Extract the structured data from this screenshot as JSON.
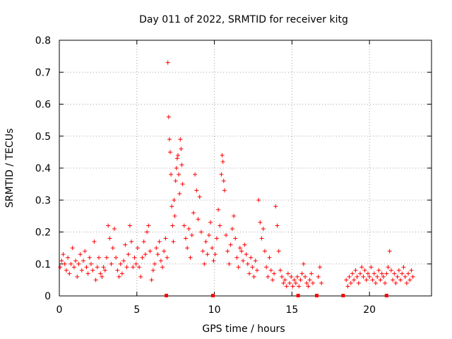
{
  "chart_data": {
    "type": "scatter",
    "title": "Day 011 of 2022, SRMTID for receiver kitg",
    "xlabel": "GPS time / hours",
    "ylabel": "SRMTID / TECUs",
    "xlim": [
      0,
      24
    ],
    "ylim": [
      0,
      0.8
    ],
    "grid": true,
    "xticks": [
      0,
      5,
      10,
      15,
      20
    ],
    "yticks": [
      0,
      0.1,
      0.2,
      0.3,
      0.4,
      0.5,
      0.6,
      0.7,
      0.8
    ],
    "xtick_labels": [
      "0",
      "5",
      "10",
      "15",
      "20"
    ],
    "ytick_labels": [
      "0",
      "0.1",
      "0.2",
      "0.3",
      "0.4",
      "0.5",
      "0.6",
      "0.7",
      "0.8"
    ],
    "marker": "+",
    "color": "#ff0000",
    "series": [
      {
        "name": "SRMTID",
        "points": [
          [
            0.05,
            0.09
          ],
          [
            0.15,
            0.11
          ],
          [
            0.25,
            0.13
          ],
          [
            0.35,
            0.1
          ],
          [
            0.45,
            0.08
          ],
          [
            0.55,
            0.12
          ],
          [
            0.65,
            0.07
          ],
          [
            0.75,
            0.1
          ],
          [
            0.85,
            0.15
          ],
          [
            0.95,
            0.09
          ],
          [
            1.05,
            0.11
          ],
          [
            1.15,
            0.06
          ],
          [
            1.25,
            0.1
          ],
          [
            1.35,
            0.13
          ],
          [
            1.45,
            0.08
          ],
          [
            1.55,
            0.11
          ],
          [
            1.65,
            0.14
          ],
          [
            1.75,
            0.09
          ],
          [
            1.85,
            0.07
          ],
          [
            1.95,
            0.12
          ],
          [
            2.05,
            0.1
          ],
          [
            2.15,
            0.08
          ],
          [
            2.25,
            0.17
          ],
          [
            2.35,
            0.05
          ],
          [
            2.45,
            0.09
          ],
          [
            2.55,
            0.12
          ],
          [
            2.65,
            0.07
          ],
          [
            2.75,
            0.06
          ],
          [
            2.85,
            0.09
          ],
          [
            2.95,
            0.08
          ],
          [
            3.05,
            0.12
          ],
          [
            3.15,
            0.22
          ],
          [
            3.25,
            0.18
          ],
          [
            3.35,
            0.1
          ],
          [
            3.45,
            0.15
          ],
          [
            3.55,
            0.21
          ],
          [
            3.65,
            0.12
          ],
          [
            3.75,
            0.08
          ],
          [
            3.85,
            0.06
          ],
          [
            3.95,
            0.1
          ],
          [
            4.05,
            0.07
          ],
          [
            4.15,
            0.11
          ],
          [
            4.25,
            0.16
          ],
          [
            4.35,
            0.09
          ],
          [
            4.45,
            0.13
          ],
          [
            4.55,
            0.22
          ],
          [
            4.65,
            0.17
          ],
          [
            4.75,
            0.09
          ],
          [
            4.85,
            0.12
          ],
          [
            4.95,
            0.1
          ],
          [
            5.05,
            0.15
          ],
          [
            5.15,
            0.09
          ],
          [
            5.25,
            0.06
          ],
          [
            5.35,
            0.12
          ],
          [
            5.45,
            0.17
          ],
          [
            5.55,
            0.13
          ],
          [
            5.65,
            0.2
          ],
          [
            5.75,
            0.22
          ],
          [
            5.85,
            0.14
          ],
          [
            5.95,
            0.05
          ],
          [
            6.05,
            0.08
          ],
          [
            6.15,
            0.1
          ],
          [
            6.25,
            0.15
          ],
          [
            6.35,
            0.13
          ],
          [
            6.45,
            0.17
          ],
          [
            6.55,
            0.11
          ],
          [
            6.65,
            0.09
          ],
          [
            6.75,
            0.14
          ],
          [
            6.85,
            0.18
          ],
          [
            6.95,
            0.12
          ],
          [
            7.0,
            0.73
          ],
          [
            7.05,
            0.56
          ],
          [
            7.1,
            0.49
          ],
          [
            7.15,
            0.45
          ],
          [
            7.2,
            0.38
          ],
          [
            7.25,
            0.28
          ],
          [
            7.3,
            0.22
          ],
          [
            7.35,
            0.17
          ],
          [
            7.4,
            0.3
          ],
          [
            7.45,
            0.25
          ],
          [
            7.5,
            0.36
          ],
          [
            7.55,
            0.4
          ],
          [
            7.6,
            0.43
          ],
          [
            7.65,
            0.44
          ],
          [
            7.7,
            0.38
          ],
          [
            7.75,
            0.32
          ],
          [
            7.8,
            0.49
          ],
          [
            7.85,
            0.46
          ],
          [
            7.9,
            0.41
          ],
          [
            7.95,
            0.35
          ],
          [
            8.05,
            0.22
          ],
          [
            8.15,
            0.18
          ],
          [
            8.25,
            0.15
          ],
          [
            8.35,
            0.21
          ],
          [
            8.45,
            0.12
          ],
          [
            8.55,
            0.19
          ],
          [
            8.65,
            0.26
          ],
          [
            8.75,
            0.38
          ],
          [
            8.85,
            0.33
          ],
          [
            8.95,
            0.24
          ],
          [
            9.05,
            0.31
          ],
          [
            9.15,
            0.2
          ],
          [
            9.25,
            0.14
          ],
          [
            9.35,
            0.1
          ],
          [
            9.45,
            0.17
          ],
          [
            9.55,
            0.13
          ],
          [
            9.65,
            0.19
          ],
          [
            9.75,
            0.23
          ],
          [
            9.85,
            0.15
          ],
          [
            9.95,
            0.11
          ],
          [
            10.05,
            0.13
          ],
          [
            10.15,
            0.18
          ],
          [
            10.25,
            0.27
          ],
          [
            10.35,
            0.22
          ],
          [
            10.45,
            0.38
          ],
          [
            10.5,
            0.44
          ],
          [
            10.55,
            0.42
          ],
          [
            10.6,
            0.36
          ],
          [
            10.65,
            0.33
          ],
          [
            10.75,
            0.19
          ],
          [
            10.85,
            0.14
          ],
          [
            10.95,
            0.1
          ],
          [
            11.05,
            0.16
          ],
          [
            11.15,
            0.21
          ],
          [
            11.25,
            0.25
          ],
          [
            11.35,
            0.18
          ],
          [
            11.45,
            0.12
          ],
          [
            11.55,
            0.09
          ],
          [
            11.65,
            0.15
          ],
          [
            11.75,
            0.14
          ],
          [
            11.85,
            0.11
          ],
          [
            11.95,
            0.16
          ],
          [
            12.05,
            0.13
          ],
          [
            12.15,
            0.1
          ],
          [
            12.25,
            0.07
          ],
          [
            12.35,
            0.12
          ],
          [
            12.45,
            0.09
          ],
          [
            12.55,
            0.06
          ],
          [
            12.65,
            0.11
          ],
          [
            12.75,
            0.08
          ],
          [
            12.85,
            0.3
          ],
          [
            12.95,
            0.23
          ],
          [
            13.05,
            0.18
          ],
          [
            13.15,
            0.21
          ],
          [
            13.25,
            0.14
          ],
          [
            13.35,
            0.09
          ],
          [
            13.45,
            0.06
          ],
          [
            13.55,
            0.12
          ],
          [
            13.65,
            0.08
          ],
          [
            13.75,
            0.05
          ],
          [
            13.85,
            0.07
          ],
          [
            13.95,
            0.28
          ],
          [
            14.05,
            0.22
          ],
          [
            14.15,
            0.14
          ],
          [
            14.25,
            0.08
          ],
          [
            14.35,
            0.06
          ],
          [
            14.45,
            0.04
          ],
          [
            14.55,
            0.05
          ],
          [
            14.65,
            0.03
          ],
          [
            14.75,
            0.07
          ],
          [
            14.85,
            0.04
          ],
          [
            14.95,
            0.06
          ],
          [
            15.05,
            0.03
          ],
          [
            15.15,
            0.05
          ],
          [
            15.25,
            0.04
          ],
          [
            15.35,
            0.06
          ],
          [
            15.45,
            0.03
          ],
          [
            15.55,
            0.05
          ],
          [
            15.65,
            0.07
          ],
          [
            15.75,
            0.1
          ],
          [
            15.85,
            0.06
          ],
          [
            15.95,
            0.04
          ],
          [
            16.05,
            0.03
          ],
          [
            16.15,
            0.05
          ],
          [
            16.25,
            0.07
          ],
          [
            16.35,
            0.04
          ],
          [
            16.7,
            0.06
          ],
          [
            16.8,
            0.09
          ],
          [
            16.9,
            0.04
          ],
          [
            18.5,
            0.05
          ],
          [
            18.6,
            0.03
          ],
          [
            18.7,
            0.06
          ],
          [
            18.8,
            0.04
          ],
          [
            18.9,
            0.07
          ],
          [
            19.0,
            0.05
          ],
          [
            19.1,
            0.08
          ],
          [
            19.2,
            0.06
          ],
          [
            19.3,
            0.04
          ],
          [
            19.4,
            0.07
          ],
          [
            19.5,
            0.09
          ],
          [
            19.6,
            0.06
          ],
          [
            19.7,
            0.08
          ],
          [
            19.8,
            0.05
          ],
          [
            19.9,
            0.07
          ],
          [
            20.0,
            0.06
          ],
          [
            20.1,
            0.09
          ],
          [
            20.2,
            0.05
          ],
          [
            20.3,
            0.07
          ],
          [
            20.4,
            0.04
          ],
          [
            20.5,
            0.06
          ],
          [
            20.6,
            0.08
          ],
          [
            20.7,
            0.05
          ],
          [
            20.8,
            0.07
          ],
          [
            20.9,
            0.06
          ],
          [
            21.0,
            0.04
          ],
          [
            21.1,
            0.07
          ],
          [
            21.2,
            0.09
          ],
          [
            21.3,
            0.14
          ],
          [
            21.4,
            0.08
          ],
          [
            21.5,
            0.05
          ],
          [
            21.6,
            0.07
          ],
          [
            21.7,
            0.04
          ],
          [
            21.8,
            0.06
          ],
          [
            21.9,
            0.08
          ],
          [
            22.0,
            0.05
          ],
          [
            22.1,
            0.07
          ],
          [
            22.2,
            0.09
          ],
          [
            22.3,
            0.06
          ],
          [
            22.4,
            0.04
          ],
          [
            22.5,
            0.07
          ],
          [
            22.6,
            0.05
          ],
          [
            22.7,
            0.08
          ],
          [
            22.8,
            0.06
          ]
        ]
      }
    ],
    "gap_markers_x": [
      6.9,
      9.9,
      15.4,
      16.6,
      18.3,
      21.1
    ]
  }
}
